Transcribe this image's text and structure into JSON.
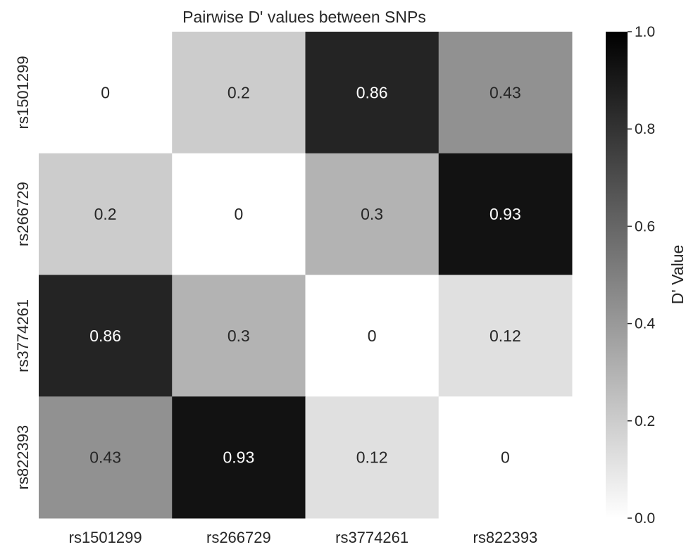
{
  "chart_data": {
    "type": "heatmap",
    "title": "Pairwise D' values between SNPs",
    "x_categories": [
      "rs1501299",
      "rs266729",
      "rs3774261",
      "rs822393"
    ],
    "y_categories": [
      "rs1501299",
      "rs266729",
      "rs3774261",
      "rs822393"
    ],
    "values": [
      [
        0,
        0.2,
        0.86,
        0.43
      ],
      [
        0.2,
        0,
        0.3,
        0.93
      ],
      [
        0.86,
        0.3,
        0,
        0.12
      ],
      [
        0.43,
        0.93,
        0.12,
        0
      ]
    ],
    "colorbar": {
      "label": "D' Value",
      "range": [
        0.0,
        1.0
      ],
      "ticks": [
        "0.0",
        "0.2",
        "0.4",
        "0.6",
        "0.8",
        "1.0"
      ],
      "colormap": "white-to-black"
    },
    "annotations": true,
    "grid": false
  }
}
